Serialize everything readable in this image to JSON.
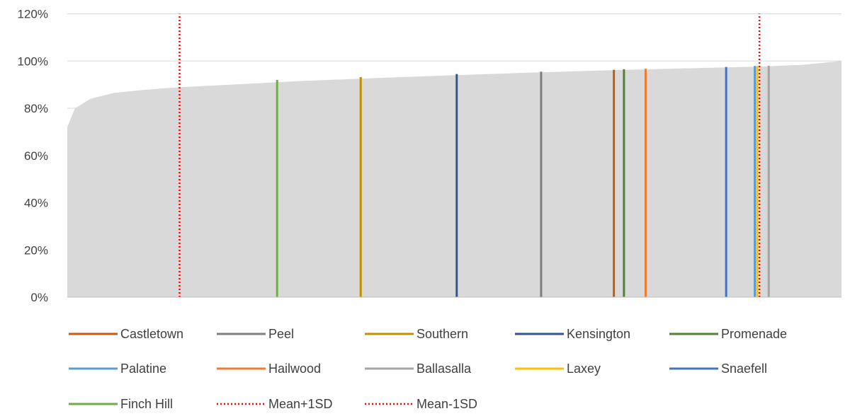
{
  "chart_data": {
    "type": "area",
    "title": "",
    "xlabel": "",
    "ylabel": "",
    "ylim": [
      0,
      1.2
    ],
    "yticks": [
      0,
      0.2,
      0.4,
      0.6,
      0.8,
      1.0,
      1.2
    ],
    "ytick_labels": [
      "0%",
      "20%",
      "40%",
      "60%",
      "80%",
      "100%",
      "120%"
    ],
    "grid": "horizontal",
    "legend_position": "bottom",
    "n_points": 1000,
    "distribution": {
      "description": "sorted values ascending",
      "x_fraction": [
        0.0,
        0.01,
        0.03,
        0.06,
        0.1,
        0.14,
        0.2,
        0.3,
        0.4,
        0.5,
        0.6,
        0.7,
        0.8,
        0.9,
        0.95,
        1.0
      ],
      "value": [
        0.72,
        0.8,
        0.84,
        0.865,
        0.878,
        0.888,
        0.898,
        0.915,
        0.928,
        0.94,
        0.951,
        0.961,
        0.969,
        0.977,
        0.984,
        1.0
      ],
      "color": "#d9d9d9"
    },
    "series": [
      {
        "name": "Castletown",
        "x_fraction": 0.706,
        "value": 0.963,
        "color": "#c55a11",
        "style": "solid"
      },
      {
        "name": "Peel",
        "x_fraction": 0.612,
        "value": 0.955,
        "color": "#7f7f7f",
        "style": "solid"
      },
      {
        "name": "Southern",
        "x_fraction": 0.379,
        "value": 0.932,
        "color": "#bf9000",
        "style": "solid"
      },
      {
        "name": "Kensington",
        "x_fraction": 0.503,
        "value": 0.945,
        "color": "#2f5597",
        "style": "solid"
      },
      {
        "name": "Promenade",
        "x_fraction": 0.719,
        "value": 0.965,
        "color": "#548235",
        "style": "solid"
      },
      {
        "name": "Palatine",
        "x_fraction": 0.888,
        "value": 0.979,
        "color": "#5b9bd5",
        "style": "solid"
      },
      {
        "name": "Hailwood",
        "x_fraction": 0.747,
        "value": 0.967,
        "color": "#ed7d31",
        "style": "solid"
      },
      {
        "name": "Ballasalla",
        "x_fraction": 0.906,
        "value": 0.98,
        "color": "#a5a5a5",
        "style": "solid"
      },
      {
        "name": "Laxey",
        "x_fraction": 0.891,
        "value": 0.979,
        "color": "#ffc000",
        "style": "solid"
      },
      {
        "name": "Snaefell",
        "x_fraction": 0.851,
        "value": 0.975,
        "color": "#4472c4",
        "style": "solid"
      },
      {
        "name": "Finch Hill",
        "x_fraction": 0.271,
        "value": 0.92,
        "color": "#70ad47",
        "style": "solid"
      },
      {
        "name": "Mean+1SD",
        "x_fraction": 0.894,
        "value": 1.2,
        "color": "#ff0000",
        "style": "dotted"
      },
      {
        "name": "Mean-1SD",
        "x_fraction": 0.145,
        "value": 1.2,
        "color": "#ff0000",
        "style": "dotted"
      }
    ],
    "colors": {
      "grid": "#d9d9d9",
      "axis": "#bfbfbf",
      "text": "#404040"
    }
  }
}
